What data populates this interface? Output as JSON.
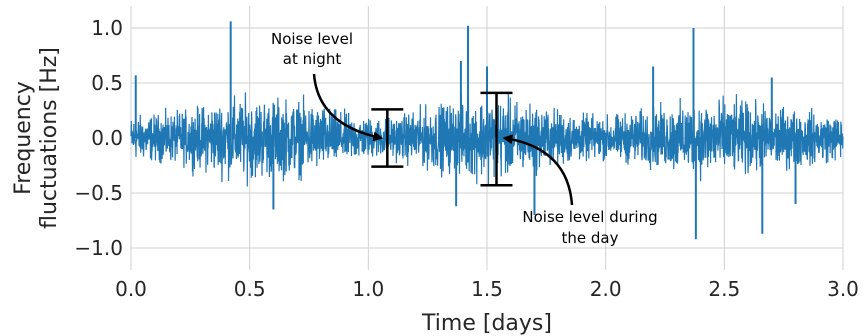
{
  "chart_data": {
    "type": "line",
    "title": "",
    "xlabel": "Time [days]",
    "ylabel": [
      "Frequency",
      "fluctuations [Hz]"
    ],
    "xlim": [
      0.0,
      3.0
    ],
    "ylim": [
      -1.2,
      1.2
    ],
    "grid": true,
    "x_ticks": [
      "0.0",
      "0.5",
      "1.0",
      "1.5",
      "2.0",
      "2.5",
      "3.0"
    ],
    "y_ticks": [
      "1.0",
      "0.5",
      "0.0",
      "−0.5",
      "−1.0"
    ],
    "series": [
      {
        "color": "#1f77b4",
        "envelope_x": [
          0.0,
          0.2,
          0.4,
          0.5,
          0.7,
          0.9,
          1.0,
          1.1,
          1.2,
          1.4,
          1.5,
          1.6,
          1.8,
          1.9,
          2.0,
          2.2,
          2.4,
          2.5,
          2.7,
          2.9,
          3.0
        ],
        "envelope_y": [
          0.17,
          0.2,
          0.3,
          0.32,
          0.3,
          0.2,
          0.16,
          0.16,
          0.22,
          0.3,
          0.32,
          0.3,
          0.22,
          0.18,
          0.17,
          0.23,
          0.3,
          0.3,
          0.25,
          0.2,
          0.17
        ],
        "spikes": [
          {
            "x": 0.02,
            "y": 0.57
          },
          {
            "x": 0.42,
            "y": 1.06
          },
          {
            "x": 0.6,
            "y": -0.65
          },
          {
            "x": 1.37,
            "y": -0.62
          },
          {
            "x": 1.39,
            "y": 0.7
          },
          {
            "x": 1.42,
            "y": 1.02
          },
          {
            "x": 1.7,
            "y": -0.7
          },
          {
            "x": 1.5,
            "y": 0.65
          },
          {
            "x": 2.38,
            "y": -0.92
          },
          {
            "x": 2.37,
            "y": 1.0
          },
          {
            "x": 2.66,
            "y": -0.87
          },
          {
            "x": 2.7,
            "y": 0.55
          },
          {
            "x": 2.8,
            "y": -0.6
          },
          {
            "x": 2.2,
            "y": 0.65
          }
        ]
      }
    ],
    "annotations": [
      {
        "lines": [
          "Noise level",
          "at night"
        ],
        "bar_x": 1.08,
        "bar_top": 0.26,
        "bar_bottom": -0.26
      },
      {
        "lines": [
          "Noise level during",
          "the day"
        ],
        "bar_x": 1.54,
        "bar_top": 0.41,
        "bar_bottom": -0.43
      }
    ]
  }
}
